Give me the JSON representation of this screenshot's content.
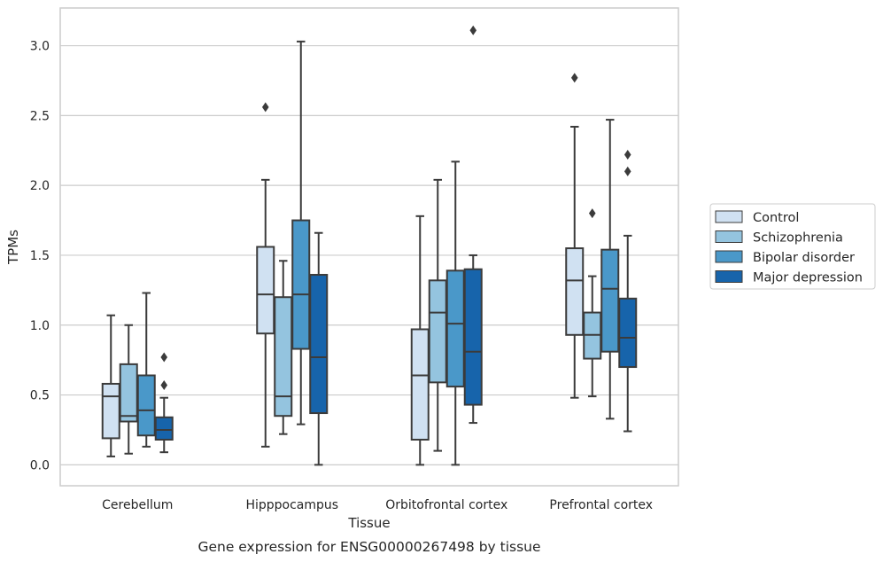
{
  "chart_data": {
    "type": "box",
    "xlabel": "Tissue",
    "ylabel": "TPMs",
    "caption": "Gene expression for ENSG00000267498 by tissue",
    "ylim": [
      -0.15,
      3.27
    ],
    "yticks": [
      "0.0",
      "0.5",
      "1.0",
      "1.5",
      "2.0",
      "2.5",
      "3.0"
    ],
    "grid": true,
    "legend_position": "right",
    "categories": [
      "Cerebellum",
      "Hipppocampus",
      "Orbitofrontal cortex",
      "Prefrontal cortex"
    ],
    "series": [
      {
        "name": "Control",
        "color": "#d0e1f2",
        "boxes": [
          {
            "whislo": 0.06,
            "q1": 0.19,
            "med": 0.49,
            "q3": 0.58,
            "whishi": 1.07,
            "fliers": []
          },
          {
            "whislo": 0.13,
            "q1": 0.94,
            "med": 1.22,
            "q3": 1.56,
            "whishi": 2.04,
            "fliers": [
              2.56
            ]
          },
          {
            "whislo": 0.0,
            "q1": 0.18,
            "med": 0.64,
            "q3": 0.97,
            "whishi": 1.78,
            "fliers": []
          },
          {
            "whislo": 0.48,
            "q1": 0.93,
            "med": 1.32,
            "q3": 1.55,
            "whishi": 2.42,
            "fliers": [
              2.77
            ]
          }
        ]
      },
      {
        "name": "Schizophrenia",
        "color": "#94c4df",
        "boxes": [
          {
            "whislo": 0.08,
            "q1": 0.31,
            "med": 0.35,
            "q3": 0.72,
            "whishi": 1.0,
            "fliers": []
          },
          {
            "whislo": 0.22,
            "q1": 0.35,
            "med": 0.49,
            "q3": 1.2,
            "whishi": 1.46,
            "fliers": []
          },
          {
            "whislo": 0.1,
            "q1": 0.59,
            "med": 1.09,
            "q3": 1.32,
            "whishi": 2.04,
            "fliers": []
          },
          {
            "whislo": 0.49,
            "q1": 0.76,
            "med": 0.93,
            "q3": 1.09,
            "whishi": 1.35,
            "fliers": [
              1.8
            ]
          }
        ]
      },
      {
        "name": "Bipolar disorder",
        "color": "#4a98c9",
        "boxes": [
          {
            "whislo": 0.13,
            "q1": 0.21,
            "med": 0.39,
            "q3": 0.64,
            "whishi": 1.23,
            "fliers": []
          },
          {
            "whislo": 0.29,
            "q1": 0.83,
            "med": 1.22,
            "q3": 1.75,
            "whishi": 3.03,
            "fliers": []
          },
          {
            "whislo": 0.0,
            "q1": 0.56,
            "med": 1.01,
            "q3": 1.39,
            "whishi": 2.17,
            "fliers": []
          },
          {
            "whislo": 0.33,
            "q1": 0.81,
            "med": 1.26,
            "q3": 1.54,
            "whishi": 2.47,
            "fliers": []
          }
        ]
      },
      {
        "name": "Major depression",
        "color": "#1764ab",
        "boxes": [
          {
            "whislo": 0.09,
            "q1": 0.18,
            "med": 0.25,
            "q3": 0.34,
            "whishi": 0.48,
            "fliers": [
              0.57,
              0.77
            ]
          },
          {
            "whislo": 0.0,
            "q1": 0.37,
            "med": 0.77,
            "q3": 1.36,
            "whishi": 1.66,
            "fliers": []
          },
          {
            "whislo": 0.3,
            "q1": 0.43,
            "med": 0.81,
            "q3": 1.4,
            "whishi": 1.5,
            "fliers": [
              3.11
            ]
          },
          {
            "whislo": 0.24,
            "q1": 0.7,
            "med": 0.91,
            "q3": 1.19,
            "whishi": 1.64,
            "fliers": [
              2.1,
              2.22
            ]
          }
        ]
      }
    ]
  }
}
